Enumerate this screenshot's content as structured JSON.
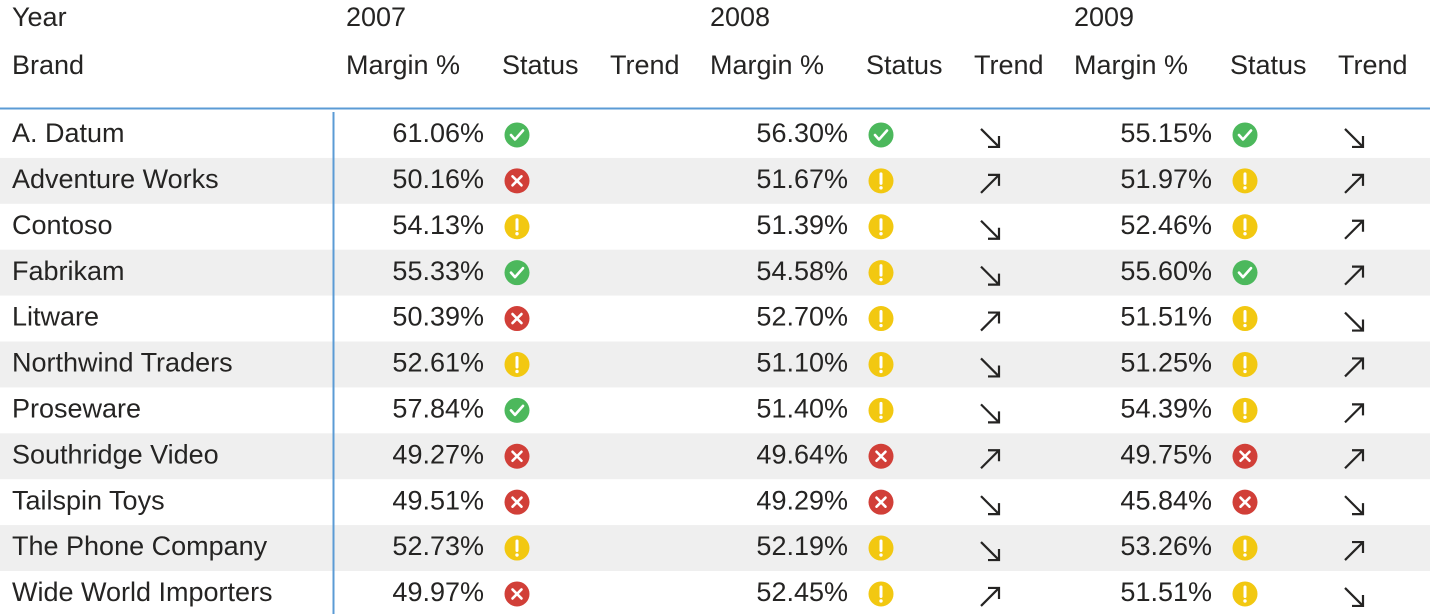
{
  "header": {
    "year_label": "Year",
    "brand_label": "Brand",
    "years": [
      "2007",
      "2008",
      "2009"
    ],
    "columns": [
      "Margin %",
      "Status",
      "Trend"
    ]
  },
  "rows": [
    {
      "brand": "A. Datum",
      "cells": [
        {
          "margin": "61.06%",
          "status": "good",
          "trend": null
        },
        {
          "margin": "56.30%",
          "status": "good",
          "trend": "down"
        },
        {
          "margin": "55.15%",
          "status": "good",
          "trend": "down"
        }
      ]
    },
    {
      "brand": "Adventure Works",
      "cells": [
        {
          "margin": "50.16%",
          "status": "bad",
          "trend": null
        },
        {
          "margin": "51.67%",
          "status": "warning",
          "trend": "up"
        },
        {
          "margin": "51.97%",
          "status": "warning",
          "trend": "up"
        }
      ]
    },
    {
      "brand": "Contoso",
      "cells": [
        {
          "margin": "54.13%",
          "status": "warning",
          "trend": null
        },
        {
          "margin": "51.39%",
          "status": "warning",
          "trend": "down"
        },
        {
          "margin": "52.46%",
          "status": "warning",
          "trend": "up"
        }
      ]
    },
    {
      "brand": "Fabrikam",
      "cells": [
        {
          "margin": "55.33%",
          "status": "good",
          "trend": null
        },
        {
          "margin": "54.58%",
          "status": "warning",
          "trend": "down"
        },
        {
          "margin": "55.60%",
          "status": "good",
          "trend": "up"
        }
      ]
    },
    {
      "brand": "Litware",
      "cells": [
        {
          "margin": "50.39%",
          "status": "bad",
          "trend": null
        },
        {
          "margin": "52.70%",
          "status": "warning",
          "trend": "up"
        },
        {
          "margin": "51.51%",
          "status": "warning",
          "trend": "down"
        }
      ]
    },
    {
      "brand": "Northwind Traders",
      "cells": [
        {
          "margin": "52.61%",
          "status": "warning",
          "trend": null
        },
        {
          "margin": "51.10%",
          "status": "warning",
          "trend": "down"
        },
        {
          "margin": "51.25%",
          "status": "warning",
          "trend": "up"
        }
      ]
    },
    {
      "brand": "Proseware",
      "cells": [
        {
          "margin": "57.84%",
          "status": "good",
          "trend": null
        },
        {
          "margin": "51.40%",
          "status": "warning",
          "trend": "down"
        },
        {
          "margin": "54.39%",
          "status": "warning",
          "trend": "up"
        }
      ]
    },
    {
      "brand": "Southridge Video",
      "cells": [
        {
          "margin": "49.27%",
          "status": "bad",
          "trend": null
        },
        {
          "margin": "49.64%",
          "status": "bad",
          "trend": "up"
        },
        {
          "margin": "49.75%",
          "status": "bad",
          "trend": "up"
        }
      ]
    },
    {
      "brand": "Tailspin Toys",
      "cells": [
        {
          "margin": "49.51%",
          "status": "bad",
          "trend": null
        },
        {
          "margin": "49.29%",
          "status": "bad",
          "trend": "down"
        },
        {
          "margin": "45.84%",
          "status": "bad",
          "trend": "down"
        }
      ]
    },
    {
      "brand": "The Phone Company",
      "cells": [
        {
          "margin": "52.73%",
          "status": "warning",
          "trend": null
        },
        {
          "margin": "52.19%",
          "status": "warning",
          "trend": "down"
        },
        {
          "margin": "53.26%",
          "status": "warning",
          "trend": "up"
        }
      ]
    },
    {
      "brand": "Wide World Importers",
      "cells": [
        {
          "margin": "49.97%",
          "status": "bad",
          "trend": null
        },
        {
          "margin": "52.45%",
          "status": "warning",
          "trend": "up"
        },
        {
          "margin": "51.51%",
          "status": "warning",
          "trend": "down"
        }
      ]
    }
  ]
}
